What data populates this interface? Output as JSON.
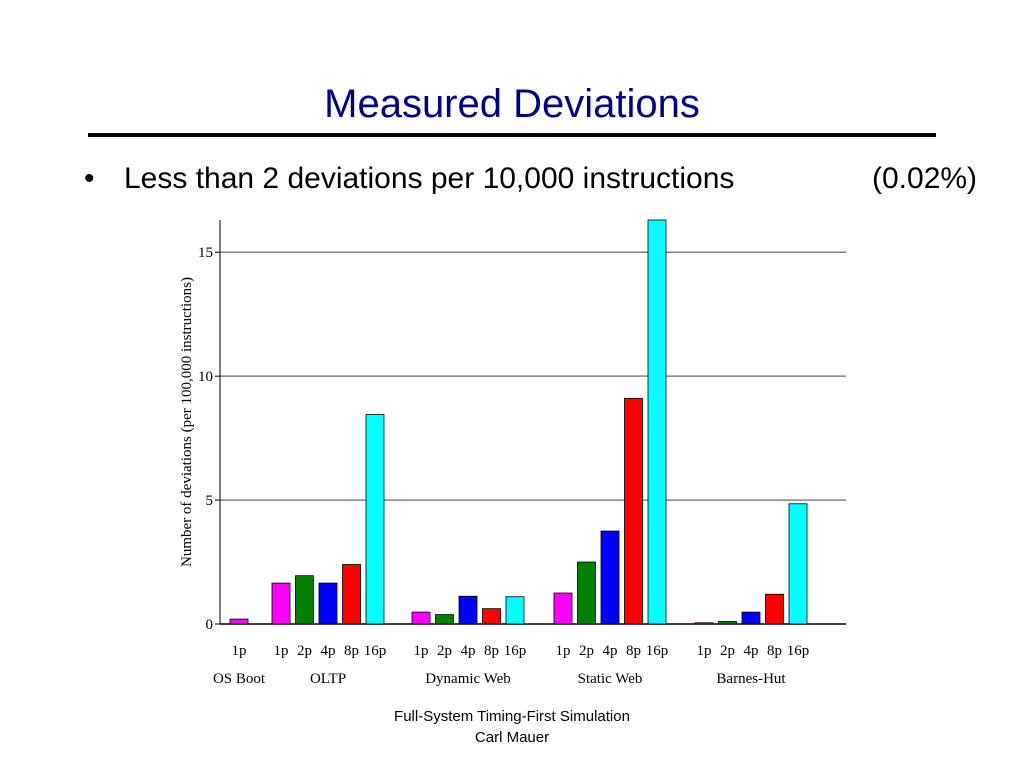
{
  "slide": {
    "title": "Measured Deviations",
    "bullet": "Less than 2 deviations per 10,000 instructions",
    "bullet_note": "(0.02%)",
    "bullet_glyph": "•",
    "footer_line1": "Full-System Timing-First Simulation",
    "footer_line2": "Carl Mauer"
  },
  "chart_data": {
    "type": "bar",
    "ylabel": "Number of deviations (per 100,000 instructions)",
    "ylim": [
      0,
      16.3
    ],
    "yticks": [
      0,
      5,
      10,
      15
    ],
    "grid": true,
    "groups": [
      {
        "name": "OS Boot",
        "bars": [
          {
            "label": "1p",
            "value": 0.2,
            "color": "#ff00ff"
          }
        ]
      },
      {
        "name": "OLTP",
        "bars": [
          {
            "label": "1p",
            "value": 1.65,
            "color": "#ff00ff"
          },
          {
            "label": "2p",
            "value": 1.95,
            "color": "#008000"
          },
          {
            "label": "4p",
            "value": 1.65,
            "color": "#0000ff"
          },
          {
            "label": "8p",
            "value": 2.4,
            "color": "#ff0000"
          },
          {
            "label": "16p",
            "value": 8.45,
            "color": "#00ffff"
          }
        ]
      },
      {
        "name": "Dynamic Web",
        "bars": [
          {
            "label": "1p",
            "value": 0.48,
            "color": "#ff00ff"
          },
          {
            "label": "2p",
            "value": 0.38,
            "color": "#008000"
          },
          {
            "label": "4p",
            "value": 1.12,
            "color": "#0000ff"
          },
          {
            "label": "8p",
            "value": 0.62,
            "color": "#ff0000"
          },
          {
            "label": "16p",
            "value": 1.1,
            "color": "#00ffff"
          }
        ]
      },
      {
        "name": "Static Web",
        "bars": [
          {
            "label": "1p",
            "value": 1.25,
            "color": "#ff00ff"
          },
          {
            "label": "2p",
            "value": 2.5,
            "color": "#008000"
          },
          {
            "label": "4p",
            "value": 3.75,
            "color": "#0000ff"
          },
          {
            "label": "8p",
            "value": 9.1,
            "color": "#ff0000"
          },
          {
            "label": "16p",
            "value": 16.3,
            "color": "#00ffff"
          }
        ]
      },
      {
        "name": "Barnes-Hut",
        "bars": [
          {
            "label": "1p",
            "value": 0.05,
            "color": "#ff00ff"
          },
          {
            "label": "2p",
            "value": 0.1,
            "color": "#008000"
          },
          {
            "label": "4p",
            "value": 0.48,
            "color": "#0000ff"
          },
          {
            "label": "8p",
            "value": 1.2,
            "color": "#ff0000"
          },
          {
            "label": "16p",
            "value": 4.85,
            "color": "#00ffff"
          }
        ]
      }
    ]
  }
}
